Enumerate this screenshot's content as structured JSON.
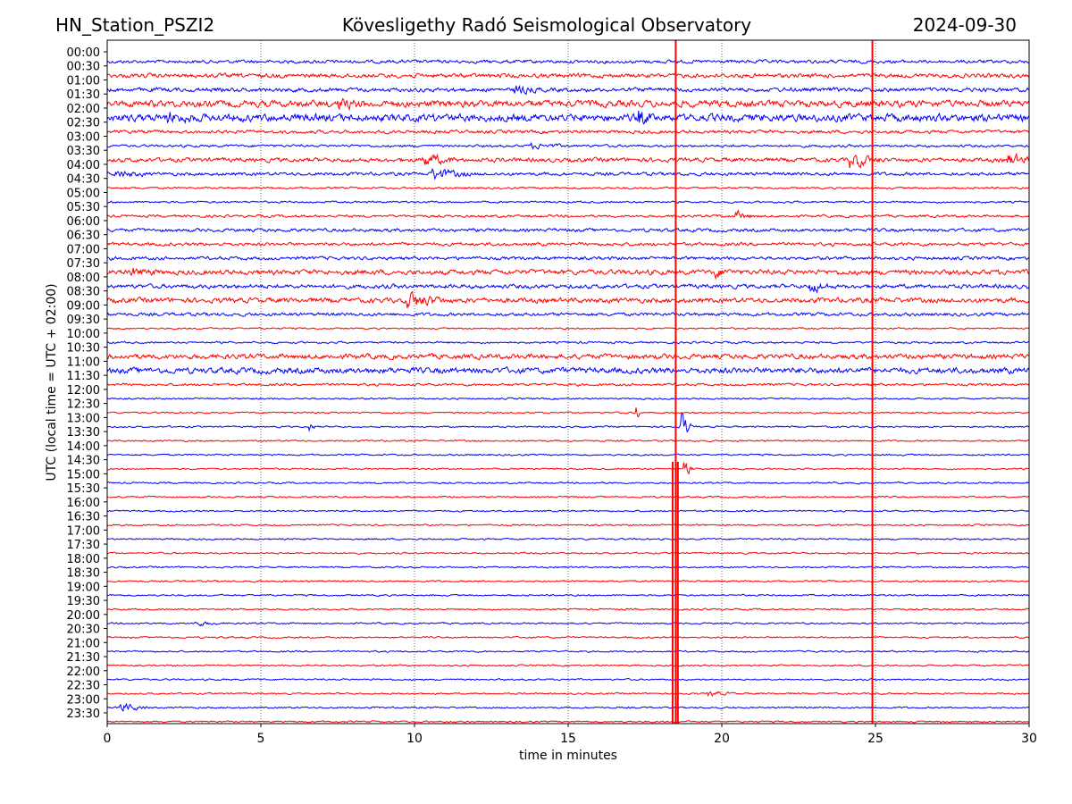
{
  "chart_data": {
    "type": "line",
    "title_left": "HN_Station_PSZI2",
    "title": "Kövesligethy Radó Seismological Observatory",
    "title_right": "2024-09-30",
    "xlabel": "time in minutes",
    "ylabel": "UTC (local time = UTC + 02:00)",
    "xlim": [
      0,
      30
    ],
    "xticks": [
      "0",
      "5",
      "10",
      "15",
      "20",
      "25",
      "30"
    ],
    "yticks": [
      "00:00",
      "00:30",
      "01:00",
      "01:30",
      "02:00",
      "02:30",
      "03:00",
      "03:30",
      "04:00",
      "04:30",
      "05:00",
      "05:30",
      "06:00",
      "06:30",
      "07:00",
      "07:30",
      "08:00",
      "08:30",
      "09:00",
      "09:30",
      "10:00",
      "10:30",
      "11:00",
      "11:30",
      "12:00",
      "12:30",
      "13:00",
      "13:30",
      "14:00",
      "14:30",
      "15:00",
      "15:30",
      "16:00",
      "16:30",
      "17:00",
      "17:30",
      "18:00",
      "18:30",
      "19:00",
      "19:30",
      "20:00",
      "20:30",
      "21:00",
      "21:30",
      "22:00",
      "22:30",
      "23:00",
      "23:30"
    ],
    "trace_colors": [
      "#0000ff",
      "#ff0000"
    ],
    "noise_level": [
      2,
      2.5,
      2.5,
      4,
      4.5,
      2,
      1.5,
      2.5,
      2,
      1.2,
      1.2,
      1.5,
      2,
      2,
      2,
      3,
      2.5,
      3,
      2,
      1,
      1.2,
      3,
      3.5,
      1.5,
      1,
      1,
      1,
      1,
      1,
      1,
      1,
      1,
      1,
      1,
      1,
      1,
      1,
      1,
      1,
      1,
      1,
      1,
      1,
      1,
      1,
      1,
      1,
      1
    ],
    "events": [
      {
        "trace": 4,
        "minute": 17.3,
        "amplitude": 10,
        "duration": 0.4
      },
      {
        "trace": 4,
        "minute": 2,
        "amplitude": 5,
        "duration": 1
      },
      {
        "trace": 3,
        "minute": 7.5,
        "amplitude": 5,
        "duration": 1
      },
      {
        "trace": 2,
        "minute": 13.3,
        "amplitude": 5,
        "duration": 0.8
      },
      {
        "trace": 6,
        "minute": 13.8,
        "amplitude": 3,
        "duration": 1.2
      },
      {
        "trace": 7,
        "minute": 10.3,
        "amplitude": 8,
        "duration": 1
      },
      {
        "trace": 7,
        "minute": 24.2,
        "amplitude": 10,
        "duration": 1
      },
      {
        "trace": 7,
        "minute": 29.3,
        "amplitude": 8,
        "duration": 0.8
      },
      {
        "trace": 8,
        "minute": 10.6,
        "amplitude": 7,
        "duration": 1.2
      },
      {
        "trace": 8,
        "minute": 0.3,
        "amplitude": 4,
        "duration": 1
      },
      {
        "trace": 11,
        "minute": 20.5,
        "amplitude": 5,
        "duration": 0.6
      },
      {
        "trace": 15,
        "minute": 0.8,
        "amplitude": 5,
        "duration": 0.8
      },
      {
        "trace": 15,
        "minute": 19.8,
        "amplitude": 6,
        "duration": 0.5
      },
      {
        "trace": 16,
        "minute": 22.9,
        "amplitude": 8,
        "duration": 0.6
      },
      {
        "trace": 17,
        "minute": 9.8,
        "amplitude": 10,
        "duration": 1.2
      },
      {
        "trace": 25,
        "minute": 17.2,
        "amplitude": 15,
        "duration": 0.15
      },
      {
        "trace": 26,
        "minute": 6.6,
        "amplitude": 6,
        "duration": 0.2
      },
      {
        "trace": 26,
        "minute": 18.7,
        "amplitude": 22,
        "duration": 0.3
      },
      {
        "trace": 29,
        "minute": 18.8,
        "amplitude": 10,
        "duration": 0.3
      },
      {
        "trace": 40,
        "minute": 2.9,
        "amplitude": 3,
        "duration": 0.8
      },
      {
        "trace": 45,
        "minute": 19.6,
        "amplitude": 3,
        "duration": 0.8
      },
      {
        "trace": 46,
        "minute": 0.4,
        "amplitude": 6,
        "duration": 1
      }
    ],
    "vertical_spikes": [
      {
        "minute": 18.5,
        "from_trace": 0,
        "to_trace": 47
      },
      {
        "minute": 24.9,
        "from_trace": 0,
        "to_trace": 47
      },
      {
        "minute": 18.4,
        "from_trace": 29,
        "to_trace": 47
      },
      {
        "minute": 18.57,
        "from_trace": 29,
        "to_trace": 47
      }
    ],
    "grid": "vertical dotted"
  }
}
